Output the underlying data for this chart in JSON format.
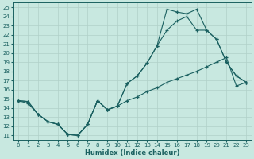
{
  "xlabel": "Humidex (Indice chaleur)",
  "bg_color": "#c8e8e0",
  "grid_color": "#b0d0c8",
  "line_color": "#1a6060",
  "xlim": [
    -0.5,
    23.5
  ],
  "ylim": [
    10.5,
    25.5
  ],
  "xticks": [
    0,
    1,
    2,
    3,
    4,
    5,
    6,
    7,
    8,
    9,
    10,
    11,
    12,
    13,
    14,
    15,
    16,
    17,
    18,
    19,
    20,
    21,
    22,
    23
  ],
  "yticks": [
    11,
    12,
    13,
    14,
    15,
    16,
    17,
    18,
    19,
    20,
    21,
    22,
    23,
    24,
    25
  ],
  "line1_x": [
    0,
    1,
    2,
    3,
    4,
    5,
    6,
    7,
    8,
    9,
    10,
    11,
    12,
    13,
    14,
    15,
    16,
    17,
    18,
    19,
    20,
    21,
    22,
    23
  ],
  "line1_y": [
    14.8,
    14.7,
    13.3,
    12.5,
    12.2,
    11.1,
    11.0,
    12.2,
    14.8,
    13.8,
    14.2,
    16.7,
    17.5,
    18.9,
    20.8,
    24.8,
    24.5,
    24.3,
    24.8,
    22.5,
    21.5,
    19.0,
    17.5,
    16.8
  ],
  "line2_x": [
    0,
    1,
    2,
    3,
    4,
    5,
    6,
    7,
    8,
    9,
    10,
    11,
    12,
    13,
    14,
    15,
    16,
    17,
    18,
    19,
    20,
    21,
    22,
    23
  ],
  "line2_y": [
    14.8,
    14.7,
    13.3,
    12.5,
    12.2,
    11.1,
    11.0,
    12.2,
    14.8,
    13.8,
    14.2,
    16.7,
    17.5,
    18.9,
    20.8,
    22.5,
    23.5,
    24.0,
    22.5,
    22.5,
    21.5,
    19.0,
    17.5,
    16.8
  ],
  "line3_x": [
    0,
    1,
    2,
    3,
    4,
    5,
    6,
    7,
    8,
    9,
    10,
    11,
    12,
    13,
    14,
    15,
    16,
    17,
    18,
    19,
    20,
    21,
    22,
    23
  ],
  "line3_y": [
    14.8,
    14.5,
    13.3,
    12.5,
    12.2,
    11.1,
    11.0,
    12.2,
    14.8,
    13.8,
    14.2,
    14.8,
    15.2,
    15.8,
    16.2,
    16.8,
    17.2,
    17.6,
    18.0,
    18.5,
    19.0,
    19.5,
    16.4,
    16.8
  ]
}
